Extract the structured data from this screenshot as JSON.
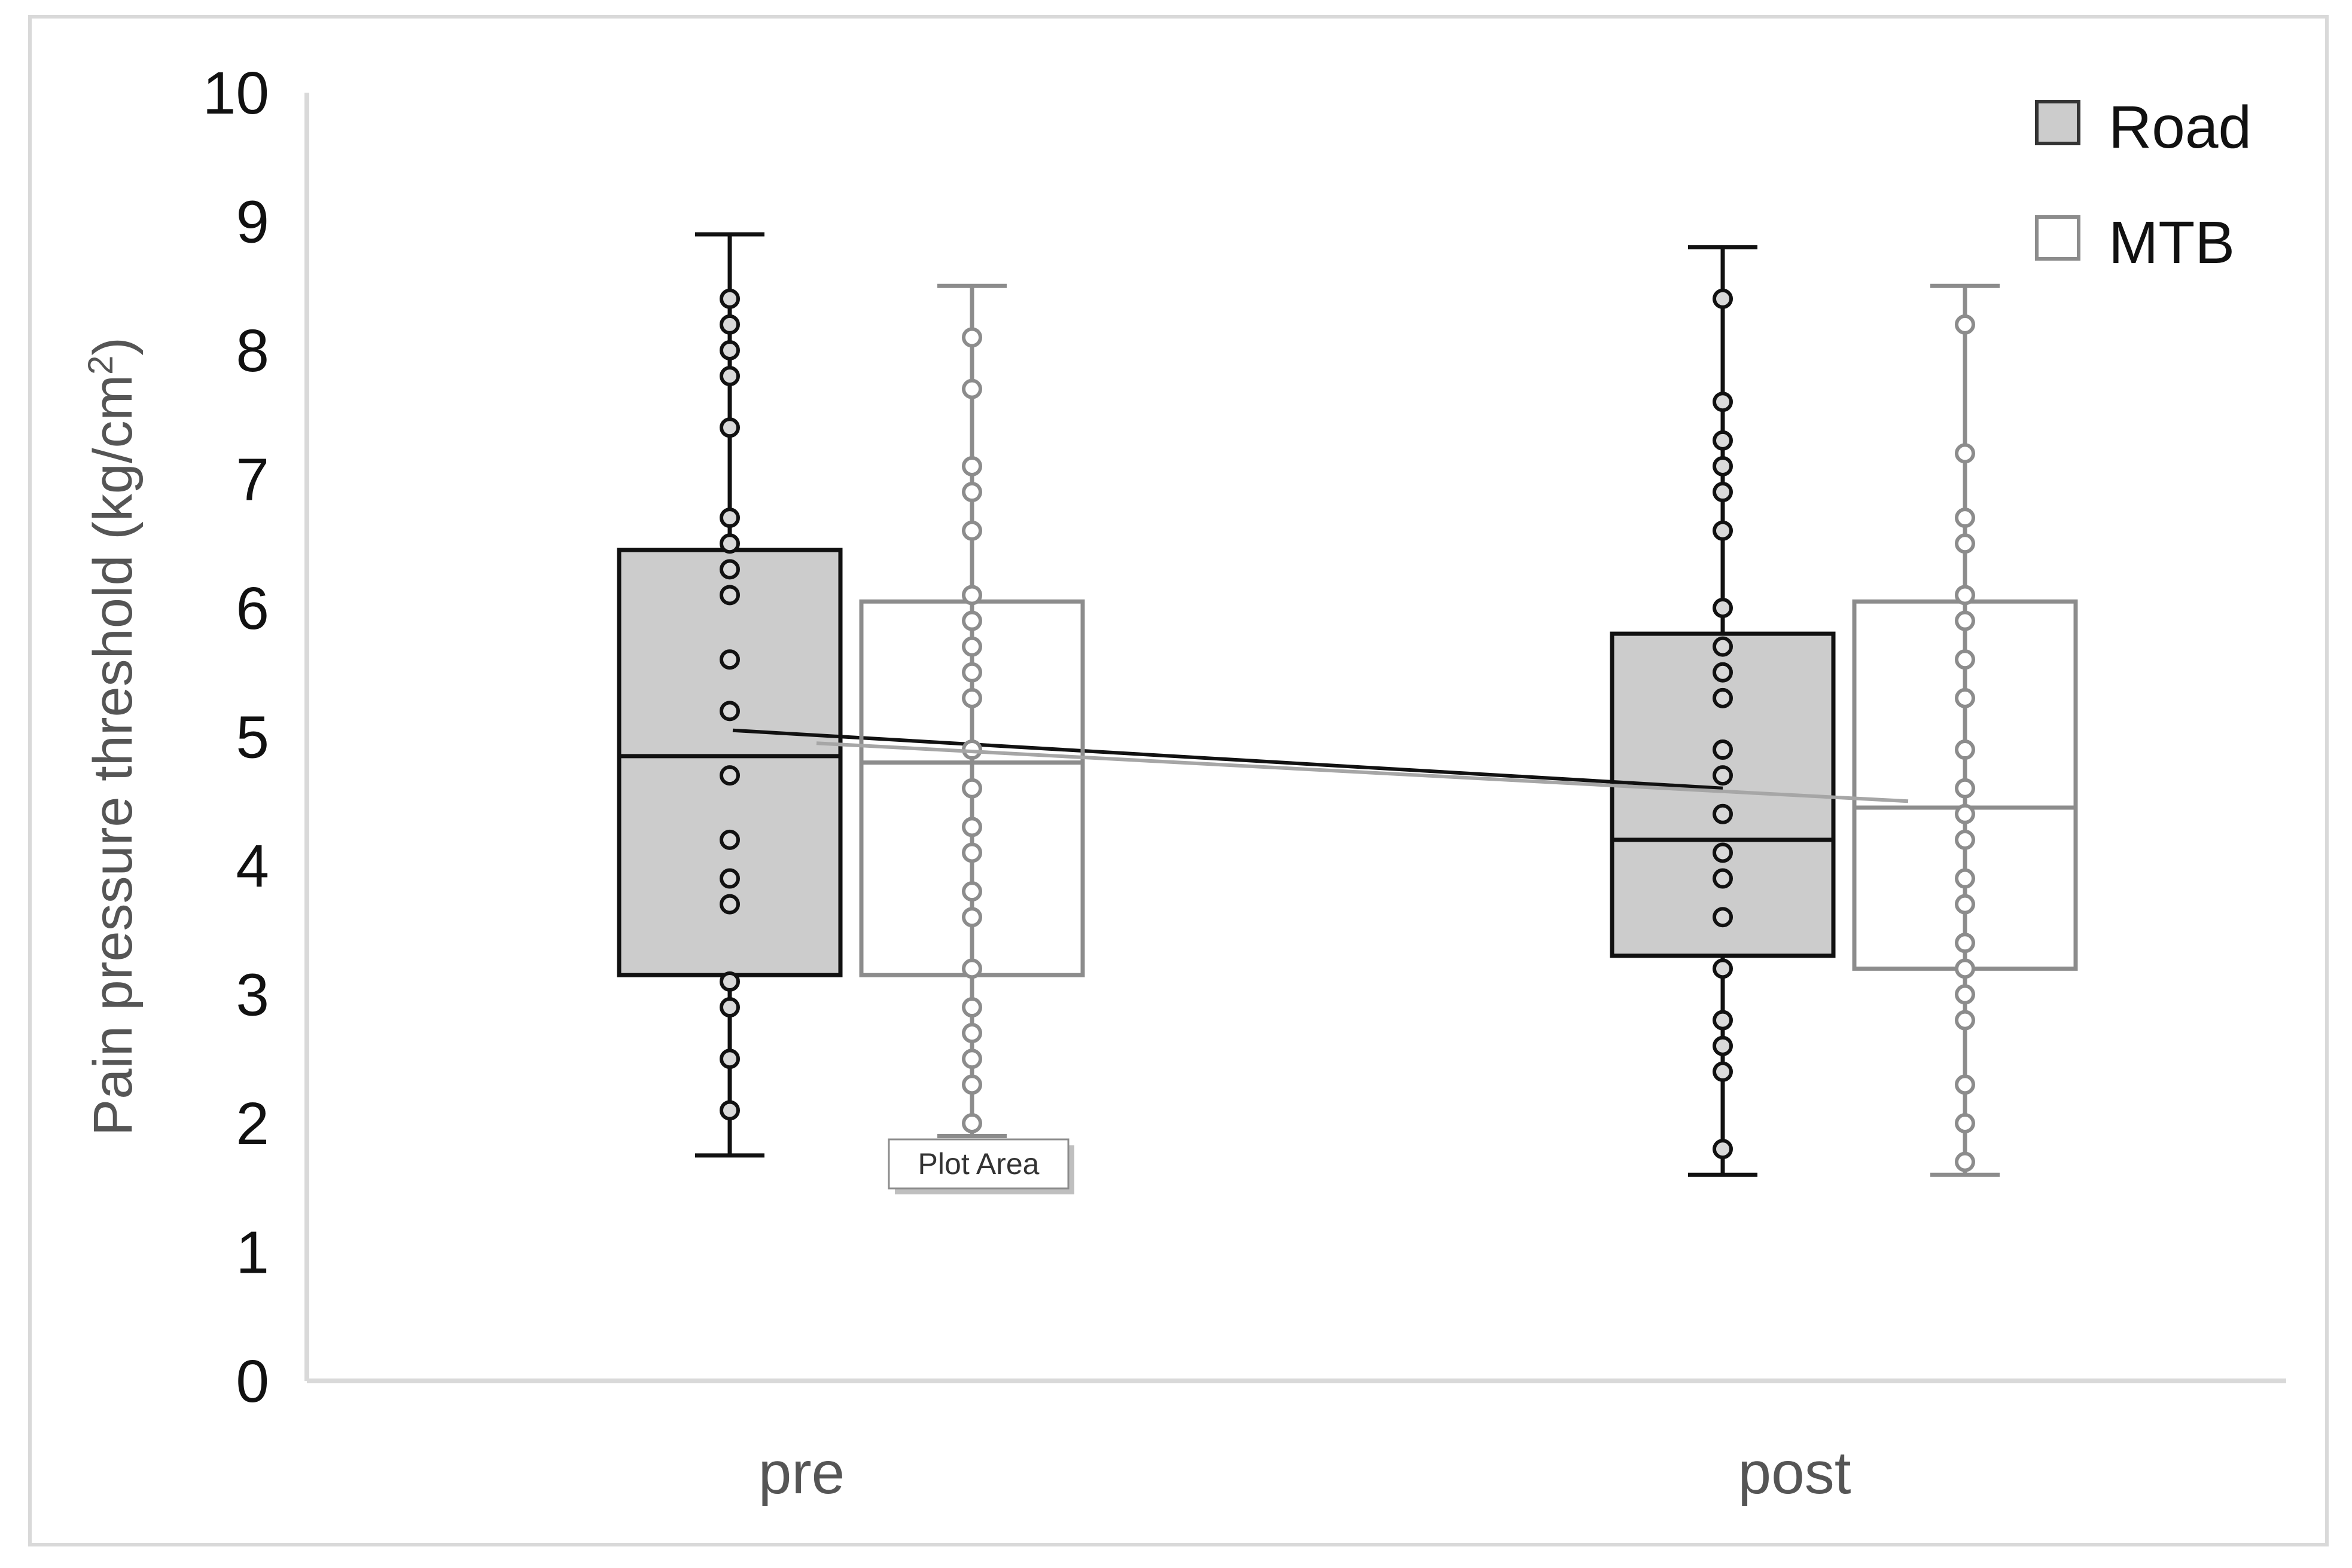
{
  "chart_data": {
    "type": "box",
    "ylabel": "Pain pressure threshold (kg/cm",
    "ylabel_sup": "2",
    "ylabel_close": ")",
    "ylim": [
      0,
      10
    ],
    "yticks": [
      "0",
      "1",
      "2",
      "3",
      "4",
      "5",
      "6",
      "7",
      "8",
      "9",
      "10"
    ],
    "categories": [
      "pre",
      "post"
    ],
    "grid": false,
    "legend_position": "top-right",
    "series": [
      {
        "name": "Road",
        "box_fill": "#cccccc",
        "stroke": "#111111",
        "boxes": [
          {
            "category": "pre",
            "min": 1.75,
            "q1": 3.15,
            "median": 4.85,
            "q3": 6.45,
            "max": 8.9,
            "mean": 5.05,
            "points": [
              8.4,
              8.2,
              8.0,
              7.8,
              7.4,
              6.7,
              6.5,
              6.3,
              6.1,
              5.6,
              5.2,
              4.7,
              4.2,
              3.9,
              3.7,
              3.1,
              2.9,
              2.5,
              2.1
            ]
          },
          {
            "category": "post",
            "min": 1.6,
            "q1": 3.3,
            "median": 4.2,
            "q3": 5.8,
            "max": 8.8,
            "mean": 4.6,
            "points": [
              8.4,
              7.6,
              7.3,
              7.1,
              6.9,
              6.6,
              6.0,
              5.7,
              5.5,
              5.3,
              4.9,
              4.7,
              4.4,
              4.1,
              3.9,
              3.6,
              3.2,
              2.8,
              2.6,
              2.4,
              1.8
            ]
          }
        ]
      },
      {
        "name": "MTB",
        "box_fill": "#ffffff",
        "stroke": "#8c8c8c",
        "boxes": [
          {
            "category": "pre",
            "min": 1.9,
            "q1": 3.15,
            "median": 4.8,
            "q3": 6.05,
            "max": 8.5,
            "mean": 4.95,
            "points": [
              8.1,
              7.7,
              7.1,
              6.9,
              6.6,
              6.1,
              5.9,
              5.7,
              5.5,
              5.3,
              4.9,
              4.6,
              4.3,
              4.1,
              3.8,
              3.6,
              3.2,
              2.9,
              2.7,
              2.5,
              2.3,
              2.0
            ]
          },
          {
            "category": "post",
            "min": 1.6,
            "q1": 3.2,
            "median": 4.45,
            "q3": 6.05,
            "max": 8.5,
            "mean": 4.5,
            "points": [
              8.2,
              7.2,
              6.7,
              6.5,
              6.1,
              5.9,
              5.6,
              5.3,
              4.9,
              4.6,
              4.4,
              4.2,
              3.9,
              3.7,
              3.4,
              3.2,
              3.0,
              2.8,
              2.3,
              2.0,
              1.7
            ]
          }
        ]
      }
    ]
  },
  "tooltip": {
    "text": "Plot Area"
  }
}
